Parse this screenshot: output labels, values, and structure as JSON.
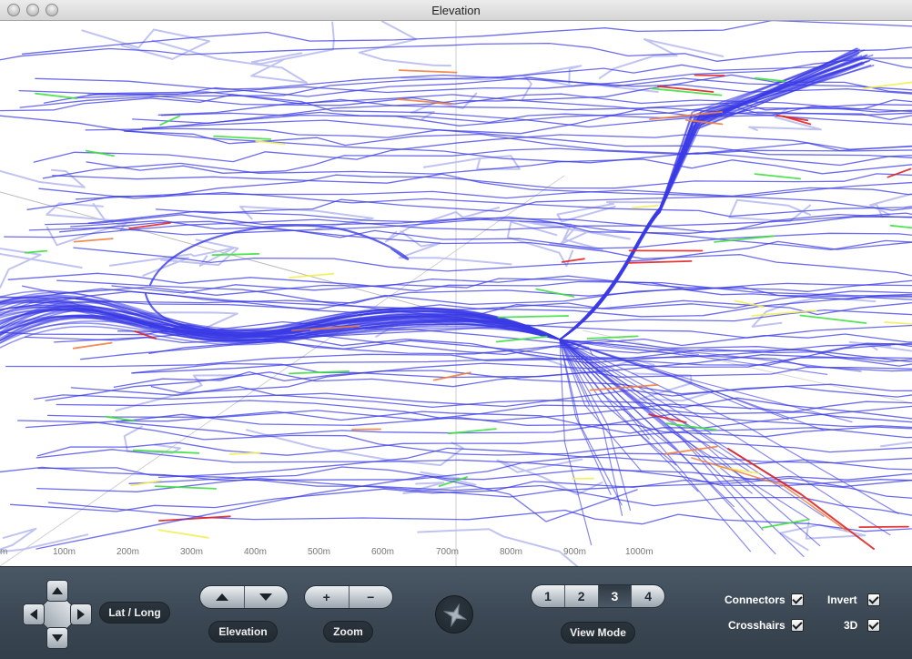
{
  "window": {
    "title": "Elevation"
  },
  "plot": {
    "axis_ticks": [
      "m",
      "100m",
      "200m",
      "300m",
      "400m",
      "500m",
      "600m",
      "700m",
      "800m",
      "900m",
      "1000m"
    ]
  },
  "controls": {
    "latlong_label": "Lat / Long",
    "elevation_label": "Elevation",
    "zoom_label": "Zoom",
    "zoom_in": "+",
    "zoom_out": "−",
    "view_mode_label": "View Mode",
    "view_modes": [
      "1",
      "2",
      "3",
      "4"
    ],
    "active_view_mode": "3",
    "checkboxes": {
      "connectors": {
        "label": "Connectors",
        "checked": true
      },
      "crosshairs": {
        "label": "Crosshairs",
        "checked": true
      },
      "invert": {
        "label": "Invert",
        "checked": true
      },
      "three_d": {
        "label": "3D",
        "checked": true
      }
    }
  },
  "colors": {
    "track_primary": "#3b3be6",
    "track_light": "#b9bdf0",
    "green": "#3fe03f",
    "yellow": "#f2ef5a",
    "red": "#e02424",
    "orange": "#f08040"
  }
}
